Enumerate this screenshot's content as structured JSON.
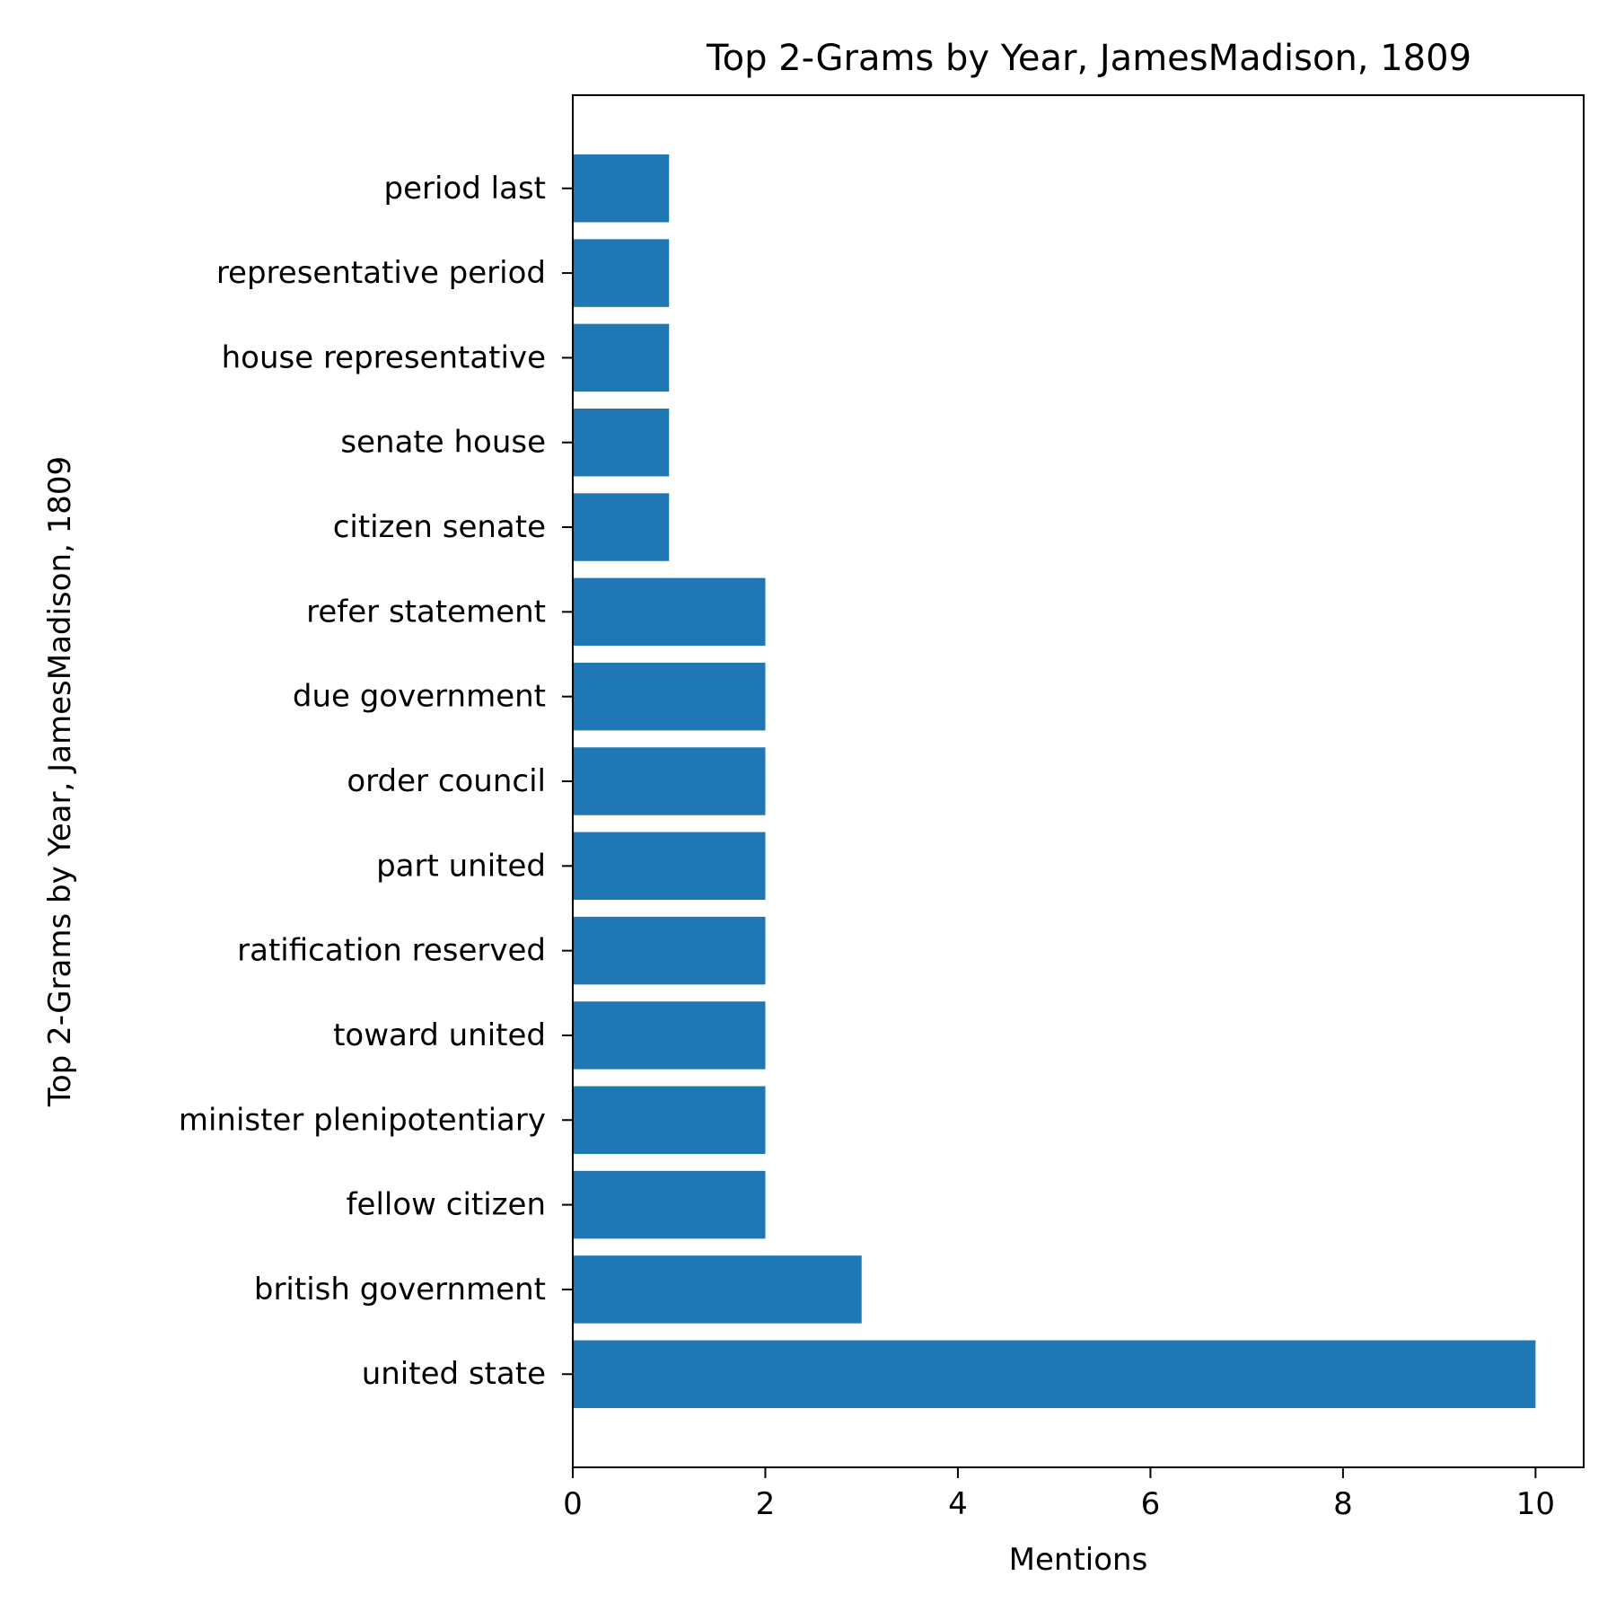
{
  "chart_data": {
    "type": "bar",
    "orientation": "horizontal",
    "title": "Top 2-Grams by Year, JamesMadison, 1809",
    "xlabel": "Mentions",
    "ylabel": "Top 2-Grams by Year, JamesMadison, 1809",
    "xlim": [
      0,
      10.5
    ],
    "xticks": [
      "0",
      "2",
      "4",
      "6",
      "8",
      "10"
    ],
    "grid": false,
    "legend": "none",
    "bar_color": "#1f77b4",
    "categories": [
      "united state",
      "british government",
      "fellow citizen",
      "minister plenipotentiary",
      "toward united",
      "ratification reserved",
      "part united",
      "order council",
      "due government",
      "refer statement",
      "citizen senate",
      "senate house",
      "house representative",
      "representative period",
      "period last"
    ],
    "values": [
      10,
      3,
      2,
      2,
      2,
      2,
      2,
      2,
      2,
      2,
      1,
      1,
      1,
      1,
      1
    ]
  }
}
